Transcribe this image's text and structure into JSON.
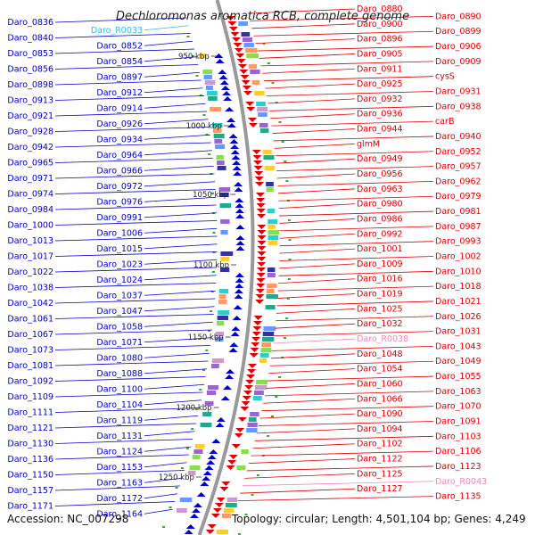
{
  "title": "Dechloromonas aromatica RCB, complete genome",
  "footer": {
    "accession": "Accession: NC_007298",
    "summary": "Topology: circular; Length: 4,501,104 bp; Genes: 4,249"
  },
  "colors": {
    "left_gene": "#0000cc",
    "right_gene": "#dd0000",
    "rna_left": "#33bbee",
    "rna_right": "#ee88bb",
    "backbone": "#999999",
    "scale_mark": "#33aa33"
  },
  "scale_ticks": [
    "950 kbp",
    "1000 kbp",
    "1050 kbp",
    "1100 kbp",
    "1150 kbp",
    "1200 kbp",
    "1250 kbp"
  ],
  "left_labels": [
    "Daro_0836",
    "Daro_R0033",
    "Daro_0840",
    "Daro_0852",
    "Daro_0853",
    "Daro_0854",
    "Daro_0856",
    "Daro_0897",
    "Daro_0898",
    "Daro_0912",
    "Daro_0913",
    "Daro_0914",
    "Daro_0921",
    "Daro_0926",
    "Daro_0928",
    "Daro_0934",
    "Daro_0942",
    "Daro_0964",
    "Daro_0965",
    "Daro_0966",
    "Daro_0971",
    "Daro_0972",
    "Daro_0974",
    "Daro_0976",
    "Daro_0984",
    "Daro_0991",
    "Daro_1000",
    "Daro_1006",
    "Daro_1013",
    "Daro_1015",
    "Daro_1017",
    "Daro_1023",
    "Daro_1022",
    "Daro_1024",
    "Daro_1038",
    "Daro_1037",
    "Daro_1042",
    "Daro_1047",
    "Daro_1061",
    "Daro_1058",
    "Daro_1067",
    "Daro_1071",
    "Daro_1073",
    "Daro_1080",
    "Daro_1081",
    "Daro_1088",
    "Daro_1092",
    "Daro_1100",
    "Daro_1109",
    "Daro_1104",
    "Daro_1111",
    "Daro_1119",
    "Daro_1121",
    "Daro_1131",
    "Daro_1130",
    "Daro_1124",
    "Daro_1136",
    "Daro_1153",
    "Daro_1150",
    "Daro_1163",
    "Daro_1157",
    "Daro_1172",
    "Daro_1171",
    "Daro_1164"
  ],
  "right_labels": [
    "Daro_0880",
    "Daro_0890",
    "Daro_0900",
    "Daro_0899",
    "Daro_0896",
    "Daro_0906",
    "Daro_0905",
    "Daro_0909",
    "Daro_0911",
    "cysS",
    "Daro_0925",
    "Daro_0931",
    "Daro_0932",
    "Daro_0938",
    "Daro_0936",
    "carB",
    "Daro_0944",
    "Daro_0940",
    "glmM",
    "Daro_0952",
    "Daro_0949",
    "Daro_0957",
    "Daro_0956",
    "Daro_0962",
    "Daro_0963",
    "Daro_0979",
    "Daro_0980",
    "Daro_0981",
    "Daro_0986",
    "Daro_0987",
    "Daro_0992",
    "Daro_0993",
    "Daro_1001",
    "Daro_1002",
    "Daro_1009",
    "Daro_1010",
    "Daro_1016",
    "Daro_1018",
    "Daro_1019",
    "Daro_1021",
    "Daro_1025",
    "Daro_1026",
    "Daro_1032",
    "Daro_1031",
    "Daro_R0038",
    "Daro_1043",
    "Daro_1048",
    "Daro_1049",
    "Daro_1054",
    "Daro_1055",
    "Daro_1060",
    "Daro_1063",
    "Daro_1066",
    "Daro_1070",
    "Daro_1090",
    "Daro_1091",
    "Daro_1094",
    "Daro_1103",
    "Daro_1102",
    "Daro_1106",
    "Daro_1122",
    "Daro_1123",
    "Daro_1125",
    "Daro_R0043",
    "Daro_1127",
    "Daro_1135"
  ]
}
